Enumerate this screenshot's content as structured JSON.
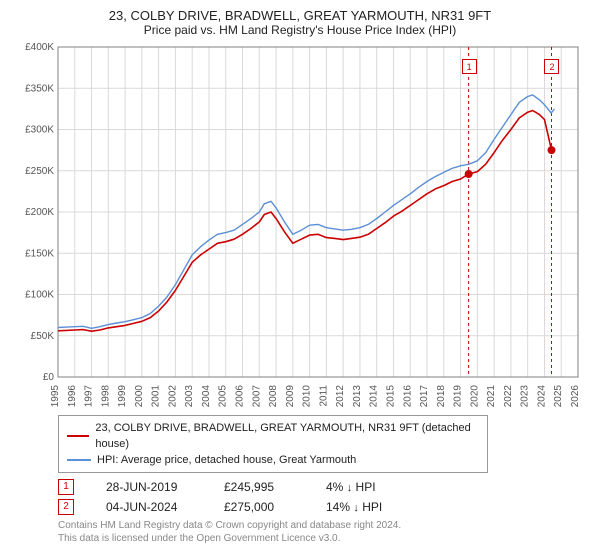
{
  "title": "23, COLBY DRIVE, BRADWELL, GREAT YARMOUTH, NR31 9FT",
  "subtitle": "Price paid vs. HM Land Registry's House Price Index (HPI)",
  "chart": {
    "type": "line",
    "background_color": "#ffffff",
    "grid_color": "#d9d9d9",
    "axis_color": "#808080",
    "tick_font_size": 10,
    "tick_color": "#555555",
    "xlim": [
      1995,
      2026
    ],
    "ylim": [
      0,
      400000
    ],
    "ytick_step": 50000,
    "ytick_labels": [
      "£0",
      "£50K",
      "£100K",
      "£150K",
      "£200K",
      "£250K",
      "£300K",
      "£350K",
      "£400K"
    ],
    "xticks": [
      1995,
      1996,
      1997,
      1998,
      1999,
      2000,
      2001,
      2002,
      2003,
      2004,
      2005,
      2006,
      2007,
      2008,
      2009,
      2010,
      2011,
      2012,
      2013,
      2014,
      2015,
      2016,
      2017,
      2018,
      2019,
      2020,
      2021,
      2022,
      2023,
      2024,
      2025,
      2026
    ],
    "verticals": [
      {
        "x": 2019.48,
        "color": "#cc0000",
        "dash": "3,3"
      },
      {
        "x": 2024.42,
        "color": "#cc0000",
        "dash": "3,3"
      }
    ],
    "sale_markers": [
      {
        "x": 2019.48,
        "label": "1",
        "color": "#cc0000",
        "y_top": 12
      },
      {
        "x": 2024.42,
        "label": "2",
        "color": "#cc0000",
        "y_top": 12
      }
    ],
    "sale_points": [
      {
        "x": 2019.48,
        "y": 245995,
        "color": "#cc0000",
        "r": 4
      },
      {
        "x": 2024.42,
        "y": 275000,
        "color": "#cc0000",
        "r": 4
      }
    ],
    "series": [
      {
        "id": "hpi",
        "label": "HPI: Average price, detached house, Great Yarmouth",
        "color": "#5b8fd6",
        "width": 1.4,
        "data": [
          [
            1995,
            60000
          ],
          [
            1995.5,
            60500
          ],
          [
            1996,
            61000
          ],
          [
            1996.5,
            61500
          ],
          [
            1997,
            59000
          ],
          [
            1997.5,
            61000
          ],
          [
            1998,
            63500
          ],
          [
            1998.5,
            65500
          ],
          [
            1999,
            67000
          ],
          [
            1999.5,
            69500
          ],
          [
            2000,
            72000
          ],
          [
            2000.5,
            77000
          ],
          [
            2001,
            86000
          ],
          [
            2001.5,
            97000
          ],
          [
            2002,
            112000
          ],
          [
            2002.5,
            130000
          ],
          [
            2003,
            148000
          ],
          [
            2003.5,
            158000
          ],
          [
            2004,
            166000
          ],
          [
            2004.5,
            173000
          ],
          [
            2005,
            175000
          ],
          [
            2005.5,
            178000
          ],
          [
            2006,
            185000
          ],
          [
            2006.5,
            192000
          ],
          [
            2007,
            200000
          ],
          [
            2007.3,
            210000
          ],
          [
            2007.7,
            213000
          ],
          [
            2008,
            205000
          ],
          [
            2008.5,
            188000
          ],
          [
            2009,
            173000
          ],
          [
            2009.5,
            178000
          ],
          [
            2010,
            184000
          ],
          [
            2010.5,
            185000
          ],
          [
            2011,
            181000
          ],
          [
            2011.5,
            179500
          ],
          [
            2012,
            178000
          ],
          [
            2012.5,
            179000
          ],
          [
            2013,
            181000
          ],
          [
            2013.5,
            185000
          ],
          [
            2014,
            192000
          ],
          [
            2014.5,
            200000
          ],
          [
            2015,
            208000
          ],
          [
            2015.5,
            215000
          ],
          [
            2016,
            222000
          ],
          [
            2016.5,
            230000
          ],
          [
            2017,
            237000
          ],
          [
            2017.5,
            243000
          ],
          [
            2018,
            248000
          ],
          [
            2018.5,
            253000
          ],
          [
            2019,
            256000
          ],
          [
            2019.5,
            258000
          ],
          [
            2020,
            262000
          ],
          [
            2020.5,
            272000
          ],
          [
            2021,
            288000
          ],
          [
            2021.5,
            303000
          ],
          [
            2022,
            318000
          ],
          [
            2022.5,
            333000
          ],
          [
            2023,
            340000
          ],
          [
            2023.3,
            342000
          ],
          [
            2023.7,
            336000
          ],
          [
            2024,
            330000
          ],
          [
            2024.4,
            320000
          ],
          [
            2024.6,
            325000
          ]
        ]
      },
      {
        "id": "property",
        "label": "23, COLBY DRIVE, BRADWELL, GREAT YARMOUTH, NR31 9FT (detached house)",
        "color": "#cc0000",
        "width": 1.6,
        "data": [
          [
            1995,
            56000
          ],
          [
            1995.5,
            56500
          ],
          [
            1996,
            57000
          ],
          [
            1996.5,
            57500
          ],
          [
            1997,
            55500
          ],
          [
            1997.5,
            57000
          ],
          [
            1998,
            59500
          ],
          [
            1998.5,
            61000
          ],
          [
            1999,
            62500
          ],
          [
            1999.5,
            65000
          ],
          [
            2000,
            67500
          ],
          [
            2000.5,
            72000
          ],
          [
            2001,
            80000
          ],
          [
            2001.5,
            91000
          ],
          [
            2002,
            105000
          ],
          [
            2002.5,
            122000
          ],
          [
            2003,
            139000
          ],
          [
            2003.5,
            148000
          ],
          [
            2004,
            155000
          ],
          [
            2004.5,
            162000
          ],
          [
            2005,
            164000
          ],
          [
            2005.5,
            167000
          ],
          [
            2006,
            173000
          ],
          [
            2006.5,
            180000
          ],
          [
            2007,
            188000
          ],
          [
            2007.3,
            197000
          ],
          [
            2007.7,
            200000
          ],
          [
            2008,
            192000
          ],
          [
            2008.5,
            176000
          ],
          [
            2009,
            162000
          ],
          [
            2009.5,
            167000
          ],
          [
            2010,
            172000
          ],
          [
            2010.5,
            173000
          ],
          [
            2011,
            169000
          ],
          [
            2011.5,
            168000
          ],
          [
            2012,
            166500
          ],
          [
            2012.5,
            168000
          ],
          [
            2013,
            169500
          ],
          [
            2013.5,
            173000
          ],
          [
            2014,
            180000
          ],
          [
            2014.5,
            187000
          ],
          [
            2015,
            195000
          ],
          [
            2015.5,
            201000
          ],
          [
            2016,
            208000
          ],
          [
            2016.5,
            215000
          ],
          [
            2017,
            222000
          ],
          [
            2017.5,
            228000
          ],
          [
            2018,
            232000
          ],
          [
            2018.5,
            237000
          ],
          [
            2019,
            240000
          ],
          [
            2019.48,
            245995
          ],
          [
            2020,
            249000
          ],
          [
            2020.5,
            258000
          ],
          [
            2021,
            272000
          ],
          [
            2021.5,
            287000
          ],
          [
            2022,
            300000
          ],
          [
            2022.5,
            314000
          ],
          [
            2023,
            321000
          ],
          [
            2023.3,
            323000
          ],
          [
            2023.7,
            318000
          ],
          [
            2024,
            312000
          ],
          [
            2024.42,
            275000
          ]
        ]
      }
    ]
  },
  "legend": {
    "items": [
      {
        "color": "#cc0000",
        "label": "23, COLBY DRIVE, BRADWELL, GREAT YARMOUTH, NR31 9FT (detached house)"
      },
      {
        "color": "#5b8fd6",
        "label": "HPI: Average price, detached house, Great Yarmouth"
      }
    ]
  },
  "transactions": [
    {
      "num": "1",
      "color": "#cc0000",
      "date": "28-JUN-2019",
      "price": "£245,995",
      "pct": "4%",
      "dir": "↓",
      "suffix": "HPI"
    },
    {
      "num": "2",
      "color": "#cc0000",
      "date": "04-JUN-2024",
      "price": "£275,000",
      "pct": "14%",
      "dir": "↓",
      "suffix": "HPI"
    }
  ],
  "footer": {
    "line1": "Contains HM Land Registry data © Crown copyright and database right 2024.",
    "line2": "This data is licensed under the Open Government Licence v3.0."
  }
}
